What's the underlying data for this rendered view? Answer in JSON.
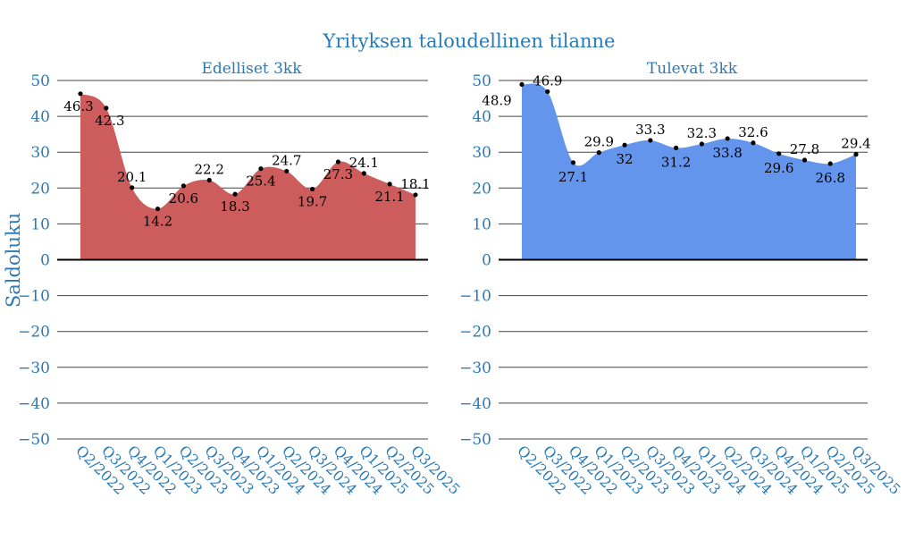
{
  "title": "Yrityksen taloudellinen tilanne",
  "ylabel": "Saldoluku",
  "chart_data": [
    {
      "type": "area",
      "title": "Edelliset 3kk",
      "categories": [
        "Q2/2022",
        "Q3/2022",
        "Q4/2022",
        "Q1/2023",
        "Q2/2023",
        "Q3/2023",
        "Q4/2023",
        "Q1/2024",
        "Q2/2024",
        "Q3/2024",
        "Q4/2024",
        "Q1/2025",
        "Q2/2025",
        "Q3/2025"
      ],
      "values": [
        46.3,
        42.3,
        20.1,
        14.2,
        20.6,
        22.2,
        18.3,
        25.4,
        24.7,
        19.7,
        27.3,
        24.1,
        21.1,
        18.1
      ],
      "ylim": [
        -50,
        50
      ],
      "yticks": [
        50,
        40,
        30,
        20,
        10,
        0,
        -10,
        -20,
        -30,
        -40,
        -50
      ],
      "color": "#cd5c5c",
      "grid": true
    },
    {
      "type": "area",
      "title": "Tulevat 3kk",
      "categories": [
        "Q2/2022",
        "Q3/2022",
        "Q4/2022",
        "Q1/2023",
        "Q2/2023",
        "Q3/2023",
        "Q4/2023",
        "Q1/2024",
        "Q2/2024",
        "Q3/2024",
        "Q4/2024",
        "Q1/2025",
        "Q2/2025",
        "Q3/2025"
      ],
      "values": [
        48.9,
        46.9,
        27.1,
        29.9,
        32,
        33.3,
        31.2,
        32.3,
        33.8,
        32.6,
        29.6,
        27.8,
        26.8,
        29.4
      ],
      "ylim": [
        -50,
        50
      ],
      "yticks": [
        50,
        40,
        30,
        20,
        10,
        0,
        -10,
        -20,
        -30,
        -40,
        -50
      ],
      "color": "#6495ed",
      "grid": true
    }
  ]
}
